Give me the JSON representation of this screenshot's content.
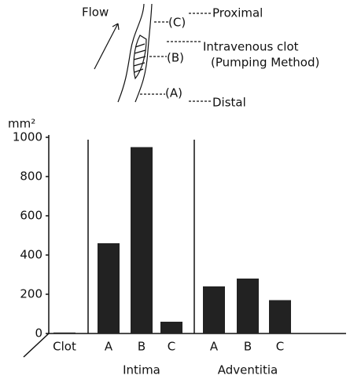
{
  "diagram": {
    "flow": "Flow",
    "label_c": "(C)",
    "proximal": "Proximal",
    "clot": "Intravenous clot",
    "method": "(Pumping Method)",
    "label_b": "(B)",
    "label_a": "(A)",
    "distal": "Distal"
  },
  "chart_data": {
    "type": "bar",
    "y_label": "mm²",
    "categories": [
      "Clot",
      "A",
      "B",
      "C",
      "A",
      "B",
      "C"
    ],
    "group_labels": [
      "Intima",
      "Adventitia"
    ],
    "values": [
      5,
      460,
      950,
      60,
      240,
      280,
      170
    ],
    "color": "#222222",
    "ylim": [
      0,
      1000
    ],
    "yticks": [
      0,
      200,
      400,
      600,
      800,
      1000
    ]
  }
}
